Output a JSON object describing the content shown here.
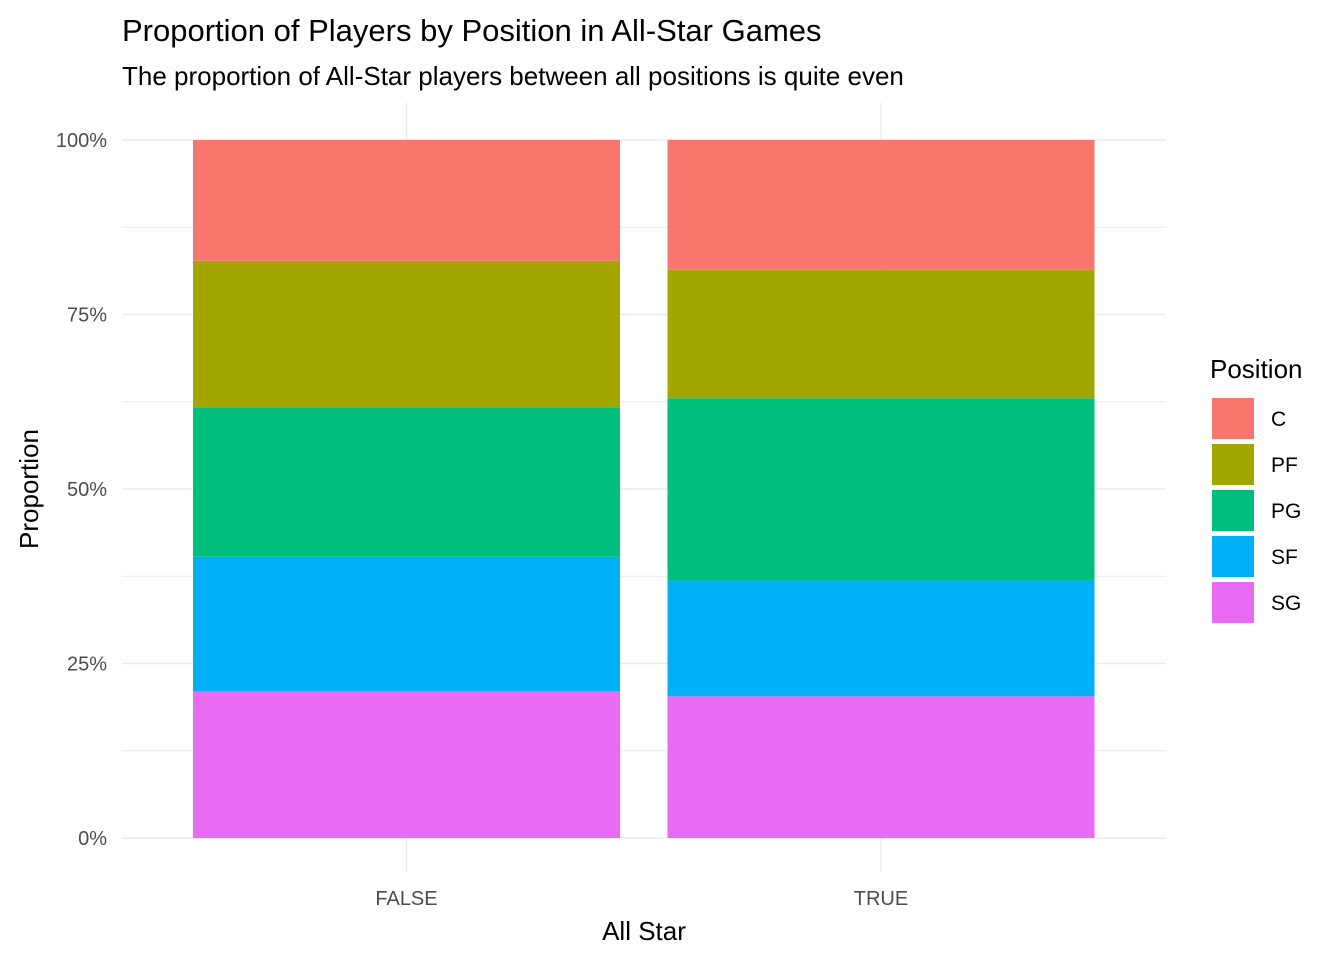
{
  "chart_data": {
    "type": "bar",
    "stacked": true,
    "normalized": true,
    "title": "Proportion of Players by Position in All-Star Games",
    "subtitle": "The proportion of All-Star players between all positions is quite even",
    "xlabel": "All Star",
    "ylabel": "Proportion",
    "categories": [
      "FALSE",
      "TRUE"
    ],
    "y_ticks": [
      "0%",
      "25%",
      "50%",
      "75%",
      "100%"
    ],
    "ylim": [
      0,
      1
    ],
    "grid": true,
    "legend": {
      "title": "Position",
      "placement": "right"
    },
    "series": [
      {
        "name": "C",
        "color": "#F8766D",
        "values": [
          0.173,
          0.186
        ]
      },
      {
        "name": "PF",
        "color": "#A3A500",
        "values": [
          0.21,
          0.184
        ]
      },
      {
        "name": "PG",
        "color": "#00BF7D",
        "values": [
          0.214,
          0.261
        ]
      },
      {
        "name": "SF",
        "color": "#00B0F6",
        "values": [
          0.193,
          0.166
        ]
      },
      {
        "name": "SG",
        "color": "#E76BF3",
        "values": [
          0.21,
          0.203
        ]
      }
    ]
  }
}
